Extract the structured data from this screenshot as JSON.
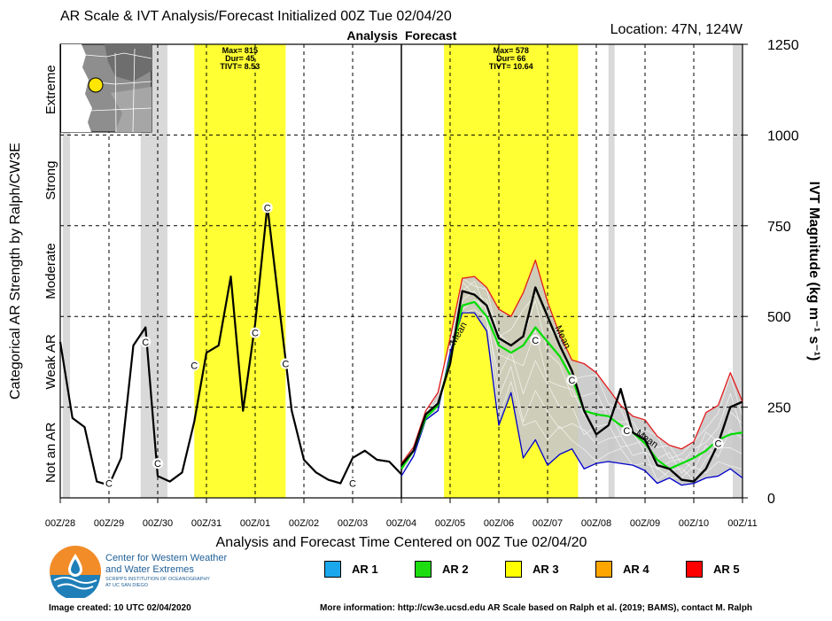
{
  "title": "AR Scale & IVT Analysis/Forecast Initialized 00Z Tue 02/04/20",
  "location": "Location: 47N, 124W",
  "analysis_label": "Analysis",
  "forecast_label": "Forecast",
  "chart_data": {
    "type": "line",
    "xlabel": "Analysis and Forecast Time Centered on 00Z Tue 02/04/20",
    "ylabel_right": "IVT Magnitude (kg m⁻¹ s⁻¹)",
    "ylabel_left": "Categorical AR Strength by Ralph/CW3E",
    "ylim": [
      0,
      1250
    ],
    "xlim": [
      -7,
      7
    ],
    "yticks": [
      0,
      250,
      500,
      750,
      1000,
      1250
    ],
    "xtick_labels": [
      "00Z/28",
      "00Z/29",
      "00Z/30",
      "00Z/31",
      "00Z/01",
      "00Z/02",
      "00Z/03",
      "00Z/04",
      "00Z/05",
      "00Z/06",
      "00Z/07",
      "00Z/08",
      "00Z/09",
      "00Z/10",
      "00Z/11"
    ],
    "categories": [
      "Not an AR",
      "Weak AR",
      "Moderate",
      "Strong",
      "Extreme"
    ],
    "category_bounds": [
      0,
      250,
      500,
      750,
      1000,
      1250
    ],
    "ar_events": [
      {
        "start": -4.25,
        "end": -2.375,
        "color": "#ffff33",
        "max_text": "Max= 815",
        "dur_text": "Dur= 45",
        "tivt_text": "TIVT= 8.53"
      },
      {
        "start": 0.875,
        "end": 3.625,
        "color": "#ffff33",
        "max_text": "Max= 578",
        "dur_text": "Dur= 66",
        "tivt_text": "TIVT= 10.64"
      }
    ],
    "gray_bands": [
      [
        -6.95,
        -6.8
      ],
      [
        -5.35,
        -4.8
      ],
      [
        4.25,
        4.375
      ],
      [
        6.8,
        7.0
      ]
    ],
    "series": [
      {
        "name": "Analysis",
        "color": "#000000",
        "x": [
          -7,
          -6.75,
          -6.5,
          -6.25,
          -6,
          -5.75,
          -5.5,
          -5.25,
          -5,
          -4.75,
          -4.5,
          -4.25,
          -4,
          -3.75,
          -3.5,
          -3.25,
          -3,
          -2.75,
          -2.5,
          -2.25,
          -2,
          -1.75,
          -1.5,
          -1.25,
          -1,
          -0.75,
          -0.5,
          -0.25,
          0
        ],
        "y": [
          430,
          220,
          195,
          45,
          35,
          110,
          420,
          470,
          60,
          45,
          70,
          210,
          400,
          420,
          610,
          240,
          480,
          805,
          520,
          240,
          105,
          70,
          50,
          40,
          110,
          130,
          105,
          100,
          65
        ]
      },
      {
        "name": "Ensemble Mean",
        "color": "#000000",
        "label": "Mean",
        "x": [
          0,
          0.25,
          0.5,
          0.75,
          1,
          1.25,
          1.5,
          1.75,
          2,
          2.25,
          2.5,
          2.75,
          3,
          3.25,
          3.5,
          3.75,
          4,
          4.25,
          4.5,
          4.75,
          5,
          5.25,
          5.5,
          5.75,
          6,
          6.25,
          6.5,
          6.75,
          7
        ],
        "y": [
          90,
          130,
          230,
          260,
          370,
          570,
          560,
          530,
          440,
          420,
          445,
          580,
          500,
          420,
          350,
          240,
          175,
          200,
          300,
          180,
          160,
          90,
          80,
          50,
          45,
          80,
          150,
          250,
          265
        ]
      },
      {
        "name": "Max Member",
        "color": "#e31a1c",
        "x": [
          0,
          0.25,
          0.5,
          0.75,
          1,
          1.25,
          1.5,
          1.75,
          2,
          2.25,
          2.5,
          2.75,
          3,
          3.25,
          3.5,
          3.75,
          4,
          4.25,
          4.5,
          4.75,
          5,
          5.25,
          5.5,
          5.75,
          6,
          6.25,
          6.5,
          6.75,
          7
        ],
        "y": [
          95,
          140,
          240,
          290,
          440,
          605,
          610,
          580,
          520,
          500,
          565,
          655,
          540,
          450,
          380,
          370,
          345,
          300,
          255,
          225,
          215,
          170,
          145,
          135,
          155,
          235,
          255,
          345,
          265
        ]
      },
      {
        "name": "Min Member",
        "color": "#0000cc",
        "x": [
          0,
          0.25,
          0.5,
          0.75,
          1,
          1.25,
          1.5,
          1.75,
          2,
          2.25,
          2.5,
          2.75,
          3,
          3.25,
          3.5,
          3.75,
          4,
          4.25,
          4.5,
          4.75,
          5,
          5.25,
          5.5,
          5.75,
          6,
          6.25,
          6.5,
          6.75,
          7
        ],
        "y": [
          60,
          115,
          215,
          240,
          400,
          510,
          510,
          460,
          200,
          290,
          110,
          160,
          90,
          120,
          135,
          80,
          95,
          100,
          95,
          90,
          75,
          40,
          55,
          35,
          40,
          55,
          60,
          80,
          55
        ]
      },
      {
        "name": "AR 2 Level",
        "color": "#00dd00",
        "label": "Mean",
        "x": [
          0,
          0.25,
          0.5,
          0.75,
          1,
          1.25,
          1.5,
          1.75,
          2,
          2.25,
          2.5,
          2.75,
          3,
          3.25,
          3.5,
          3.75,
          4,
          4.25,
          4.5,
          4.75,
          5,
          5.25,
          5.5,
          5.75,
          6,
          6.25,
          6.5,
          6.75,
          7
        ],
        "y": [
          80,
          130,
          220,
          255,
          380,
          530,
          540,
          500,
          420,
          400,
          420,
          470,
          430,
          390,
          330,
          240,
          230,
          225,
          200,
          180,
          150,
          105,
          80,
          95,
          110,
          130,
          160,
          175,
          180
        ]
      }
    ],
    "c_markers": [
      {
        "x": -6,
        "y": 40
      },
      {
        "x": -5.25,
        "y": 430
      },
      {
        "x": -5,
        "y": 95
      },
      {
        "x": -4.25,
        "y": 365
      },
      {
        "x": -3,
        "y": 455
      },
      {
        "x": -2.75,
        "y": 800
      },
      {
        "x": -2.375,
        "y": 370
      },
      {
        "x": -1,
        "y": 40
      },
      {
        "x": 2.75,
        "y": 435
      },
      {
        "x": 3.5,
        "y": 325
      },
      {
        "x": 4.625,
        "y": 185
      },
      {
        "x": 6.5,
        "y": 150
      }
    ]
  },
  "legend": [
    {
      "label": "AR 1",
      "color": "#1aa7ec"
    },
    {
      "label": "AR 2",
      "color": "#1ddc10"
    },
    {
      "label": "AR 3",
      "color": "#ffff00"
    },
    {
      "label": "AR 4",
      "color": "#ffa500"
    },
    {
      "label": "AR 5",
      "color": "#ff0000"
    }
  ],
  "logo": {
    "line1": "Center for Western Weather",
    "line2": "and Water Extremes",
    "line3": "SCRIPPS INSTITUTION OF OCEANOGRAPHY",
    "line4": "AT UC SAN DIEGO"
  },
  "footer": {
    "left": "Image created: 10 UTC 02/04/2020",
    "right": "More information: http://cw3e.ucsd.edu  AR Scale based on Ralph et al. (2019; BAMS), contact M. Ralph"
  }
}
